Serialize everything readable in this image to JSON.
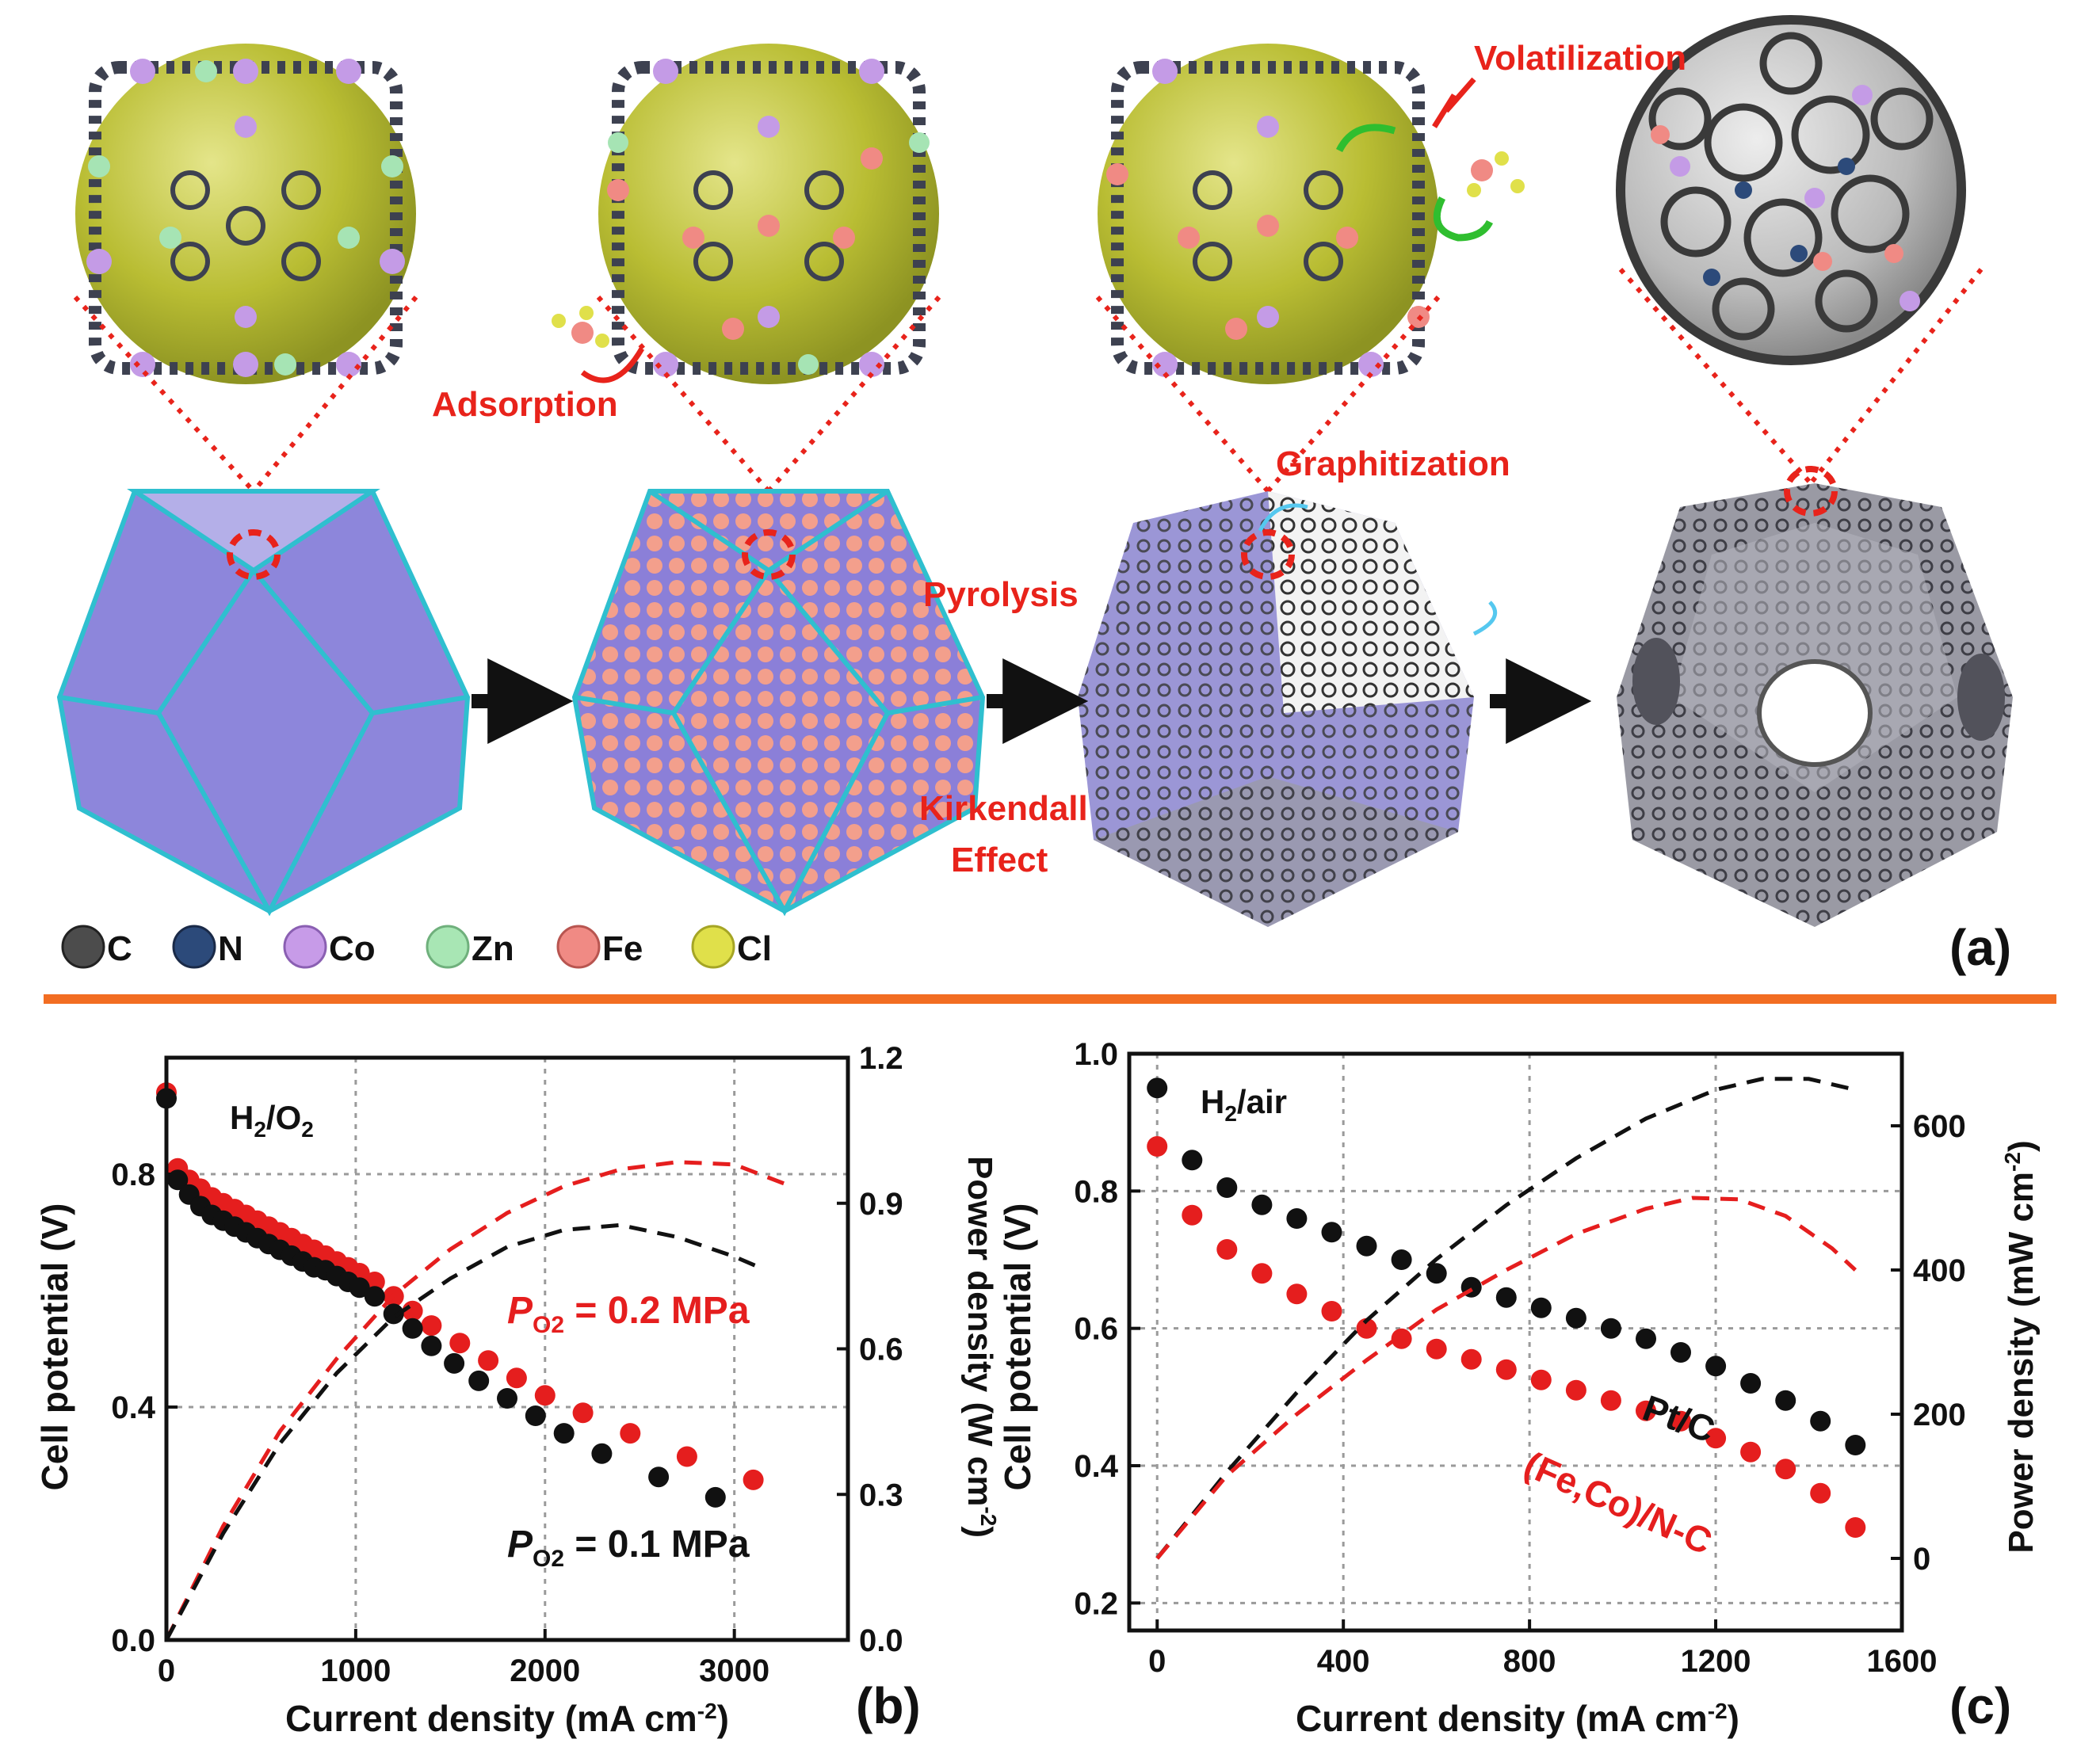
{
  "panel_a": {
    "label": "(a)",
    "stage_annotations": {
      "adsorption": "Adsorption",
      "volatilization": "Volatilization",
      "graphitization": "Graphitization",
      "pyrolysis": "Pyrolysis",
      "kirkendall_1": "Kirkendall",
      "kirkendall_2": "Effect"
    },
    "legend": [
      {
        "symbol": "C",
        "color": "#505050"
      },
      {
        "symbol": "N",
        "color": "#2c4a7a"
      },
      {
        "symbol": "Co",
        "color": "#c79be8"
      },
      {
        "symbol": "Zn",
        "color": "#a8e6b4"
      },
      {
        "symbol": "Fe",
        "color": "#f08a84"
      },
      {
        "symbol": "Cl",
        "color": "#e0e04a"
      }
    ]
  },
  "chart_data": [
    {
      "type": "scatter",
      "panel_label": "(b)",
      "annotation": "H2/O2",
      "xlabel": "Current density (mA cm-2)",
      "ylabel": "Cell potential (V)",
      "y2label": "Power density (W cm-2)",
      "xlim": [
        0,
        3600
      ],
      "ylim": [
        0,
        1.0
      ],
      "y2lim": [
        0,
        1.2
      ],
      "xticks": [
        "0",
        "1000",
        "2000",
        "3000"
      ],
      "yticks": [
        "0.0",
        "0.4",
        "0.8"
      ],
      "y2ticks": [
        "0.0",
        "0.3",
        "0.6",
        "0.9",
        "1.2"
      ],
      "grid": true,
      "series": [
        {
          "label": "P O2 = 0.2 MPa",
          "color": "#e51e1e",
          "x": [
            0,
            60,
            120,
            180,
            240,
            300,
            360,
            420,
            480,
            540,
            600,
            660,
            720,
            780,
            840,
            900,
            960,
            1020,
            1100,
            1200,
            1300,
            1400,
            1550,
            1700,
            1850,
            2000,
            2200,
            2450,
            2750,
            3100
          ],
          "y": [
            0.94,
            0.81,
            0.79,
            0.775,
            0.76,
            0.75,
            0.74,
            0.73,
            0.72,
            0.71,
            0.7,
            0.69,
            0.68,
            0.67,
            0.66,
            0.65,
            0.64,
            0.63,
            0.615,
            0.59,
            0.565,
            0.54,
            0.51,
            0.48,
            0.45,
            0.42,
            0.39,
            0.355,
            0.315,
            0.275
          ]
        },
        {
          "label": "P O2 = 0.1 MPa",
          "color": "#111111",
          "x": [
            0,
            60,
            120,
            180,
            240,
            300,
            360,
            420,
            480,
            540,
            600,
            660,
            720,
            780,
            840,
            900,
            960,
            1020,
            1100,
            1200,
            1300,
            1400,
            1520,
            1650,
            1800,
            1950,
            2100,
            2300,
            2600,
            2900
          ],
          "y": [
            0.93,
            0.79,
            0.765,
            0.745,
            0.73,
            0.72,
            0.71,
            0.7,
            0.69,
            0.68,
            0.67,
            0.66,
            0.65,
            0.64,
            0.635,
            0.625,
            0.615,
            0.605,
            0.59,
            0.56,
            0.535,
            0.505,
            0.475,
            0.445,
            0.415,
            0.385,
            0.355,
            0.32,
            0.28,
            0.245
          ]
        },
        {
          "label": "Power P O2 = 0.2 MPa",
          "color": "#e51e1e",
          "dashed": true,
          "axis": "right",
          "x": [
            0,
            300,
            600,
            900,
            1200,
            1500,
            1800,
            2100,
            2400,
            2700,
            3000,
            3300
          ],
          "y": [
            0,
            0.235,
            0.43,
            0.58,
            0.71,
            0.805,
            0.88,
            0.935,
            0.97,
            0.985,
            0.98,
            0.935
          ]
        },
        {
          "label": "Power P O2 = 0.1 MPa",
          "color": "#111111",
          "dashed": true,
          "axis": "right",
          "x": [
            0,
            300,
            600,
            900,
            1200,
            1500,
            1800,
            2100,
            2400,
            2700,
            3000,
            3150
          ],
          "y": [
            0,
            0.22,
            0.405,
            0.55,
            0.665,
            0.745,
            0.81,
            0.845,
            0.855,
            0.83,
            0.79,
            0.765
          ]
        }
      ],
      "annotations": [
        {
          "text": "P",
          "sub": "O2",
          "value": "= 0.2 MPa",
          "color": "#e51e1e"
        },
        {
          "text": "P",
          "sub": "O2",
          "value": "= 0.1 MPa",
          "color": "#111111"
        }
      ]
    },
    {
      "type": "scatter",
      "panel_label": "(c)",
      "annotation": "H2/air",
      "xlabel": "Current density (mA cm-2)",
      "ylabel": "Cell potential (V)",
      "y2label": "Power density (mW cm-2)",
      "xlim": [
        -60,
        1600
      ],
      "ylim": [
        0.16,
        1.0
      ],
      "y2lim": [
        -100,
        700
      ],
      "xticks": [
        "0",
        "400",
        "800",
        "1200",
        "1600"
      ],
      "yticks": [
        "0.2",
        "0.4",
        "0.6",
        "0.8",
        "1.0"
      ],
      "y2ticks": [
        "0",
        "200",
        "400",
        "600"
      ],
      "grid": true,
      "series": [
        {
          "label": "Pt/C",
          "color": "#111111",
          "x": [
            0,
            75,
            150,
            225,
            300,
            375,
            450,
            525,
            600,
            675,
            750,
            825,
            900,
            975,
            1050,
            1125,
            1200,
            1275,
            1350,
            1425,
            1500
          ],
          "y": [
            0.95,
            0.845,
            0.805,
            0.78,
            0.76,
            0.74,
            0.72,
            0.7,
            0.68,
            0.66,
            0.645,
            0.63,
            0.615,
            0.6,
            0.585,
            0.565,
            0.545,
            0.52,
            0.495,
            0.465,
            0.43
          ]
        },
        {
          "label": "(Fe,Co)/N-C",
          "color": "#e51e1e",
          "x": [
            0,
            75,
            150,
            225,
            300,
            375,
            450,
            525,
            600,
            675,
            750,
            825,
            900,
            975,
            1050,
            1125,
            1200,
            1275,
            1350,
            1425,
            1500
          ],
          "y": [
            0.865,
            0.765,
            0.715,
            0.68,
            0.65,
            0.625,
            0.6,
            0.585,
            0.57,
            0.555,
            0.54,
            0.525,
            0.51,
            0.495,
            0.48,
            0.465,
            0.44,
            0.42,
            0.395,
            0.36,
            0.31
          ]
        },
        {
          "label": "Power Pt/C",
          "color": "#111111",
          "dashed": true,
          "axis": "right",
          "x": [
            0,
            150,
            300,
            450,
            600,
            750,
            900,
            1050,
            1200,
            1300,
            1400,
            1500
          ],
          "y": [
            0,
            120,
            230,
            330,
            415,
            490,
            555,
            610,
            650,
            665,
            665,
            650
          ]
        },
        {
          "label": "Power (Fe,Co)/N-C",
          "color": "#e51e1e",
          "dashed": true,
          "axis": "right",
          "x": [
            0,
            150,
            300,
            450,
            600,
            750,
            900,
            1050,
            1150,
            1250,
            1350,
            1450,
            1500
          ],
          "y": [
            0,
            115,
            200,
            275,
            345,
            400,
            450,
            485,
            500,
            498,
            475,
            430,
            400
          ]
        }
      ],
      "annotations": [
        {
          "text": "Pt/C",
          "color": "#111111"
        },
        {
          "text": "(Fe,Co)/N-C",
          "color": "#e51e1e"
        }
      ]
    }
  ]
}
